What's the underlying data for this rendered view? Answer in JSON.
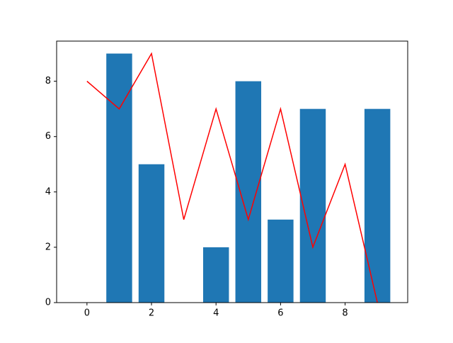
{
  "chart_data": {
    "type": "bar",
    "x": [
      0,
      1,
      2,
      3,
      4,
      5,
      6,
      7,
      8,
      9
    ],
    "series": [
      {
        "type": "bar",
        "color": "#1f77b4",
        "values": [
          0,
          9,
          5,
          0,
          2,
          8,
          3,
          7,
          0,
          7
        ]
      },
      {
        "type": "line",
        "color": "#ff0000",
        "values": [
          8,
          7,
          9,
          3,
          7,
          3,
          7,
          2,
          5,
          0
        ]
      }
    ],
    "xlim": [
      -0.94,
      9.94
    ],
    "xticks": [
      0,
      2,
      4,
      6,
      8
    ],
    "ylim": [
      0,
      9.45
    ],
    "yticks": [
      0,
      2,
      4,
      6,
      8
    ],
    "grid": false
  }
}
